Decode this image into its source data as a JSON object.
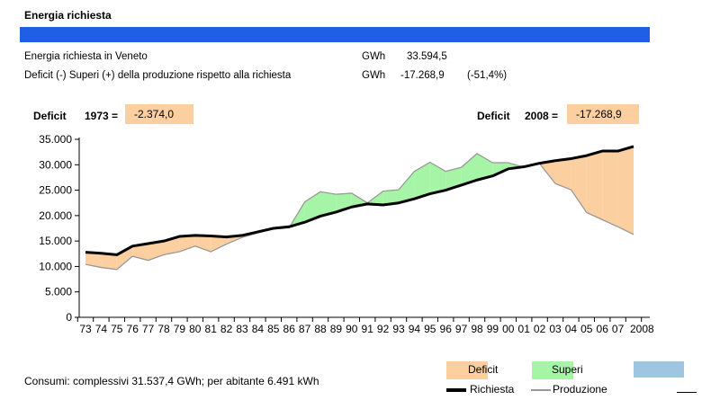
{
  "header": {
    "title": "Energia richiesta"
  },
  "summary": {
    "row1": {
      "label": "Energia richiesta in Veneto",
      "unit": "GWh",
      "value": "33.594,5",
      "pct": ""
    },
    "row2": {
      "label": "Deficit (-) Superi (+) della produzione rispetto alla richiesta",
      "unit": "GWh",
      "value": "-17.268,9",
      "pct": "(-51,4%)"
    }
  },
  "annotations": {
    "left": {
      "label": "Deficit",
      "year": "1973 =",
      "value": "-2.374,0"
    },
    "right": {
      "label": "Deficit",
      "year": "2008 =",
      "value": "-17.268,9"
    }
  },
  "footer": {
    "text": "Consumi: complessivi 31.537,4 GWh; per abitante 6.491 kWh"
  },
  "legend": {
    "deficit": "Deficit",
    "superi": "Superi",
    "richiesta": "Richiesta",
    "produzione": "Produzione"
  },
  "colors": {
    "header_bar": "#1f5fe6",
    "deficit": "#fbcfa0",
    "superi": "#a6f5a6",
    "third_swatch": "#9ec6e0",
    "richiesta": "#000000",
    "produzione": "#999999"
  },
  "chart_data": {
    "type": "area",
    "title": "",
    "xlabel": "",
    "ylabel": "",
    "ylim": [
      0,
      35000
    ],
    "yticks": [
      "0",
      "5.000",
      "10.000",
      "15.000",
      "20.000",
      "25.000",
      "30.000",
      "35.000"
    ],
    "x": [
      "73",
      "74",
      "75",
      "76",
      "77",
      "78",
      "79",
      "80",
      "81",
      "82",
      "83",
      "84",
      "85",
      "86",
      "87",
      "88",
      "89",
      "90",
      "91",
      "92",
      "93",
      "94",
      "95",
      "96",
      "97",
      "98",
      "99",
      "00",
      "01",
      "02",
      "03",
      "04",
      "05",
      "06",
      "07",
      "2008"
    ],
    "series": [
      {
        "name": "Richiesta",
        "values": [
          12800,
          12600,
          12300,
          14000,
          14500,
          15000,
          15900,
          16100,
          16000,
          15800,
          16100,
          16800,
          17500,
          17800,
          18700,
          19900,
          20700,
          21700,
          22300,
          22100,
          22500,
          23300,
          24300,
          25000,
          26000,
          27000,
          27800,
          29200,
          29600,
          30300,
          30800,
          31200,
          31800,
          32700,
          32700,
          33600
        ]
      },
      {
        "name": "Produzione",
        "values": [
          10400,
          9800,
          9400,
          12000,
          11200,
          12300,
          12900,
          14000,
          12900,
          14400,
          15700,
          16600,
          17400,
          17600,
          22700,
          24700,
          24200,
          24400,
          22500,
          24800,
          25100,
          28700,
          30500,
          28700,
          29500,
          32200,
          30400,
          30400,
          29500,
          30200,
          26300,
          25100,
          20600,
          19200,
          17800,
          16300
        ]
      }
    ]
  }
}
